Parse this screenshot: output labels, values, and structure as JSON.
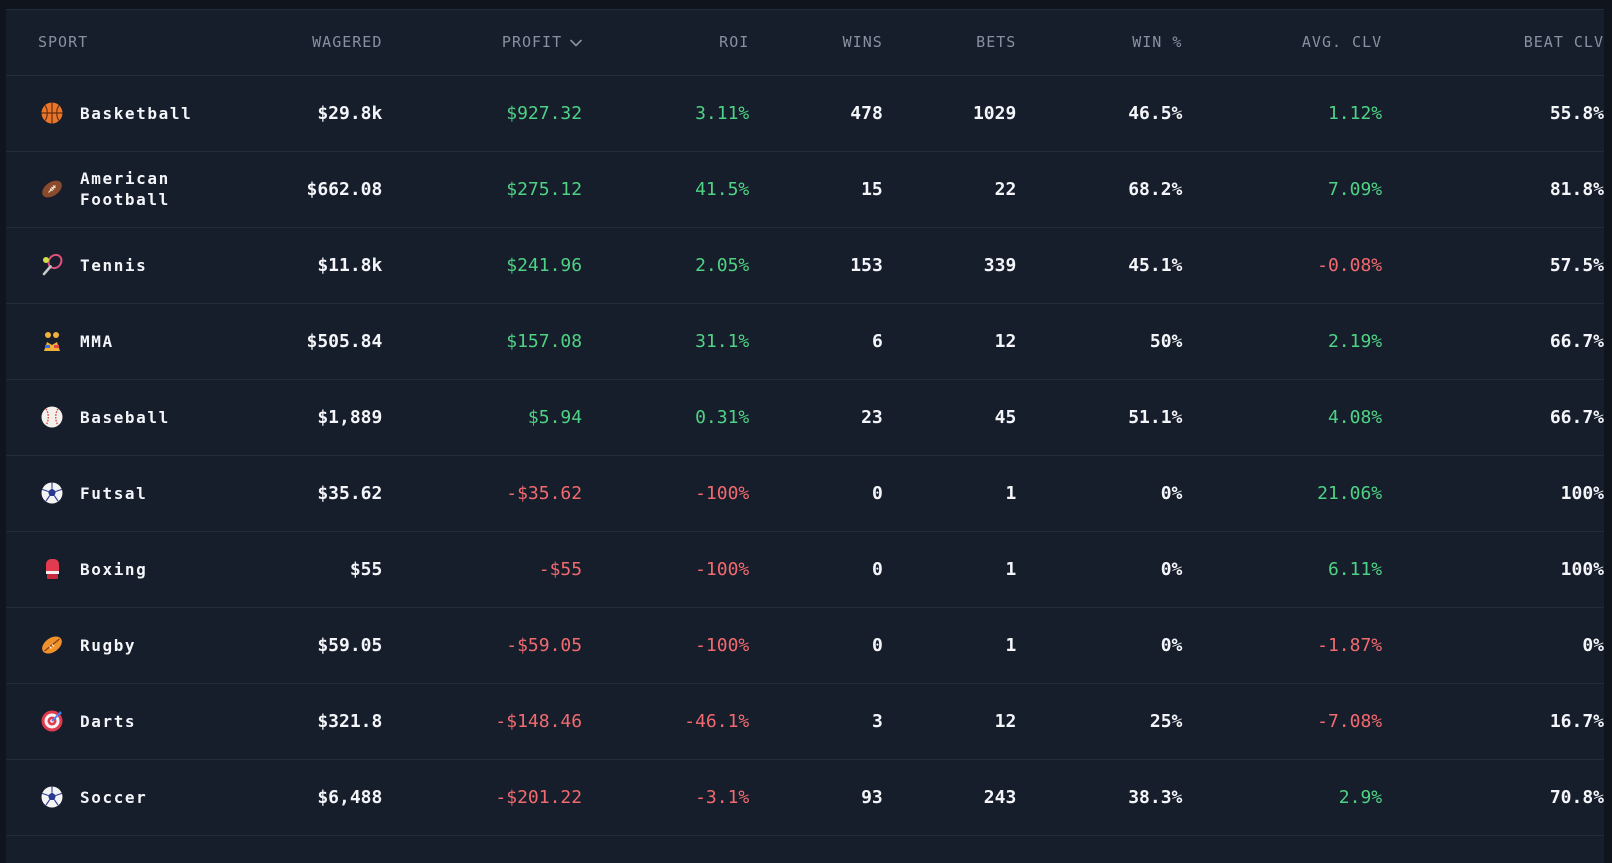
{
  "table": {
    "headers": {
      "sport": "SPORT",
      "wagered": "WAGERED",
      "profit": "PROFIT",
      "roi": "ROI",
      "wins": "WINS",
      "bets": "BETS",
      "win_pct": "WIN %",
      "avg_clv": "AVG. CLV",
      "beat_clv": "BEAT CLV"
    },
    "sort": {
      "column": "profit",
      "direction": "desc"
    },
    "colors": {
      "positive": "#4ed384",
      "negative": "#f26a6f",
      "text": "#f3f5f9",
      "header": "#8791a1",
      "background": "#161d2b"
    },
    "rows": [
      {
        "icon": "basketball-icon",
        "sport": "Basketball",
        "wagered": "$29.8k",
        "profit": "$927.32",
        "profit_sign": "pos",
        "roi": "3.11%",
        "roi_sign": "pos",
        "wins": "478",
        "bets": "1029",
        "win_pct": "46.5%",
        "avg_clv": "1.12%",
        "clv_sign": "pos",
        "beat_clv": "55.8%"
      },
      {
        "icon": "american-football-icon",
        "sport": "American Football",
        "wagered": "$662.08",
        "profit": "$275.12",
        "profit_sign": "pos",
        "roi": "41.5%",
        "roi_sign": "pos",
        "wins": "15",
        "bets": "22",
        "win_pct": "68.2%",
        "avg_clv": "7.09%",
        "clv_sign": "pos",
        "beat_clv": "81.8%"
      },
      {
        "icon": "tennis-icon",
        "sport": "Tennis",
        "wagered": "$11.8k",
        "profit": "$241.96",
        "profit_sign": "pos",
        "roi": "2.05%",
        "roi_sign": "pos",
        "wins": "153",
        "bets": "339",
        "win_pct": "45.1%",
        "avg_clv": "-0.08%",
        "clv_sign": "neg",
        "beat_clv": "57.5%"
      },
      {
        "icon": "mma-icon",
        "sport": "MMA",
        "wagered": "$505.84",
        "profit": "$157.08",
        "profit_sign": "pos",
        "roi": "31.1%",
        "roi_sign": "pos",
        "wins": "6",
        "bets": "12",
        "win_pct": "50%",
        "avg_clv": "2.19%",
        "clv_sign": "pos",
        "beat_clv": "66.7%"
      },
      {
        "icon": "baseball-icon",
        "sport": "Baseball",
        "wagered": "$1,889",
        "profit": "$5.94",
        "profit_sign": "pos",
        "roi": "0.31%",
        "roi_sign": "pos",
        "wins": "23",
        "bets": "45",
        "win_pct": "51.1%",
        "avg_clv": "4.08%",
        "clv_sign": "pos",
        "beat_clv": "66.7%"
      },
      {
        "icon": "futsal-icon",
        "sport": "Futsal",
        "wagered": "$35.62",
        "profit": "-$35.62",
        "profit_sign": "neg",
        "roi": "-100%",
        "roi_sign": "neg",
        "wins": "0",
        "bets": "1",
        "win_pct": "0%",
        "avg_clv": "21.06%",
        "clv_sign": "pos",
        "beat_clv": "100%"
      },
      {
        "icon": "boxing-glove-icon",
        "sport": "Boxing",
        "wagered": "$55",
        "profit": "-$55",
        "profit_sign": "neg",
        "roi": "-100%",
        "roi_sign": "neg",
        "wins": "0",
        "bets": "1",
        "win_pct": "0%",
        "avg_clv": "6.11%",
        "clv_sign": "pos",
        "beat_clv": "100%"
      },
      {
        "icon": "rugby-ball-icon",
        "sport": "Rugby",
        "wagered": "$59.05",
        "profit": "-$59.05",
        "profit_sign": "neg",
        "roi": "-100%",
        "roi_sign": "neg",
        "wins": "0",
        "bets": "1",
        "win_pct": "0%",
        "avg_clv": "-1.87%",
        "clv_sign": "neg",
        "beat_clv": "0%"
      },
      {
        "icon": "darts-icon",
        "sport": "Darts",
        "wagered": "$321.8",
        "profit": "-$148.46",
        "profit_sign": "neg",
        "roi": "-46.1%",
        "roi_sign": "neg",
        "wins": "3",
        "bets": "12",
        "win_pct": "25%",
        "avg_clv": "-7.08%",
        "clv_sign": "neg",
        "beat_clv": "16.7%"
      },
      {
        "icon": "soccer-icon",
        "sport": "Soccer",
        "wagered": "$6,488",
        "profit": "-$201.22",
        "profit_sign": "neg",
        "roi": "-3.1%",
        "roi_sign": "neg",
        "wins": "93",
        "bets": "243",
        "win_pct": "38.3%",
        "avg_clv": "2.9%",
        "clv_sign": "pos",
        "beat_clv": "70.8%"
      }
    ]
  }
}
